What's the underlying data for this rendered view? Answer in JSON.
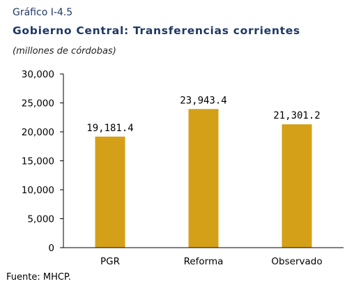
{
  "header": {
    "figure_number": "Gráfico I-4.5",
    "title": "Gobierno Central: Transferencias corrientes",
    "subtitle": "(millones de córdobas)"
  },
  "footer": {
    "source": "Fuente: MHCP."
  },
  "colors": {
    "bar": "#d4a017",
    "axis": "#000000"
  },
  "chart_data": {
    "type": "bar",
    "title": "Gobierno Central: Transferencias corrientes",
    "ylabel": "(millones de córdobas)",
    "xlabel": "",
    "categories": [
      "PGR",
      "Reforma",
      "Observado"
    ],
    "values": [
      19181.4,
      23943.4,
      21301.2
    ],
    "data_labels": [
      "19,181.4",
      "23,943.4",
      "21,301.2"
    ],
    "ylim": [
      0,
      30000
    ],
    "yticks": [
      0,
      5000,
      10000,
      15000,
      20000,
      25000,
      30000
    ],
    "ytick_labels": [
      "0",
      "5,000",
      "10,000",
      "15,000",
      "20,000",
      "25,000",
      "30,000"
    ],
    "grid": false,
    "legend": "none"
  }
}
